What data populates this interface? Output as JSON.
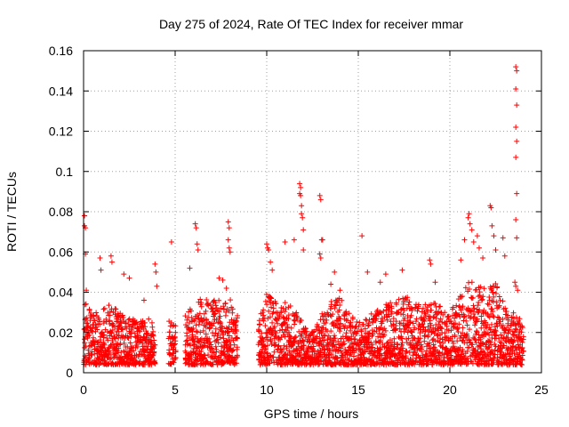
{
  "chart_data": {
    "type": "scatter",
    "title": "Day 275 of 2024, Rate Of TEC Index for receiver mmar",
    "xlabel": "GPS time / hours",
    "ylabel": "ROTI / TECUs",
    "xlim": [
      0,
      25
    ],
    "ylim": [
      0,
      0.16
    ],
    "xticks": [
      0,
      5,
      10,
      15,
      20,
      25
    ],
    "yticks": [
      0,
      0.02,
      0.04,
      0.06,
      0.08,
      0.1,
      0.12,
      0.14,
      0.16
    ],
    "xtick_labels": [
      "0",
      "5",
      "10",
      "15",
      "20",
      "25"
    ],
    "ytick_labels": [
      "0",
      "0.02",
      "0.04",
      "0.06",
      "0.08",
      "0.1",
      "0.12",
      "0.14",
      "0.16"
    ],
    "grid": true,
    "marker": "+",
    "color": "#ff0000",
    "data_gaps_hours": [
      [
        3.9,
        4.6
      ],
      [
        5.0,
        5.5
      ],
      [
        8.4,
        9.5
      ]
    ],
    "series": [
      {
        "name": "ROTI",
        "points": [
          [
            0.05,
            0.078
          ],
          [
            0.05,
            0.073
          ],
          [
            0.1,
            0.072
          ],
          [
            0.1,
            0.059
          ],
          [
            0.15,
            0.041
          ],
          [
            0.9,
            0.057
          ],
          [
            0.95,
            0.051
          ],
          [
            1.5,
            0.058
          ],
          [
            1.55,
            0.055
          ],
          [
            2.2,
            0.049
          ],
          [
            2.5,
            0.047
          ],
          [
            3.3,
            0.036
          ],
          [
            3.9,
            0.054
          ],
          [
            3.95,
            0.05
          ],
          [
            4.0,
            0.043
          ],
          [
            4.8,
            0.065
          ],
          [
            5.8,
            0.052
          ],
          [
            6.1,
            0.074
          ],
          [
            6.15,
            0.072
          ],
          [
            6.2,
            0.064
          ],
          [
            6.25,
            0.061
          ],
          [
            7.4,
            0.047
          ],
          [
            7.6,
            0.046
          ],
          [
            7.8,
            0.042
          ],
          [
            7.9,
            0.075
          ],
          [
            7.95,
            0.072
          ],
          [
            7.9,
            0.066
          ],
          [
            7.95,
            0.062
          ],
          [
            8.0,
            0.06
          ],
          [
            10.0,
            0.064
          ],
          [
            10.05,
            0.062
          ],
          [
            10.1,
            0.061
          ],
          [
            10.2,
            0.055
          ],
          [
            10.3,
            0.051
          ],
          [
            11.0,
            0.065
          ],
          [
            11.5,
            0.066
          ],
          [
            11.8,
            0.094
          ],
          [
            11.85,
            0.092
          ],
          [
            11.8,
            0.089
          ],
          [
            11.85,
            0.088
          ],
          [
            11.9,
            0.083
          ],
          [
            11.9,
            0.079
          ],
          [
            11.95,
            0.077
          ],
          [
            12.0,
            0.071
          ],
          [
            12.0,
            0.061
          ],
          [
            12.9,
            0.088
          ],
          [
            12.95,
            0.086
          ],
          [
            13.0,
            0.066
          ],
          [
            13.05,
            0.066
          ],
          [
            12.9,
            0.059
          ],
          [
            12.95,
            0.057
          ],
          [
            13.5,
            0.044
          ],
          [
            13.7,
            0.05
          ],
          [
            14.0,
            0.041
          ],
          [
            15.2,
            0.068
          ],
          [
            15.5,
            0.05
          ],
          [
            16.2,
            0.045
          ],
          [
            16.5,
            0.049
          ],
          [
            17.4,
            0.051
          ],
          [
            18.9,
            0.056
          ],
          [
            18.95,
            0.054
          ],
          [
            19.2,
            0.045
          ],
          [
            20.6,
            0.056
          ],
          [
            20.8,
            0.066
          ],
          [
            21.0,
            0.077
          ],
          [
            21.05,
            0.079
          ],
          [
            21.1,
            0.074
          ],
          [
            21.2,
            0.071
          ],
          [
            21.3,
            0.065
          ],
          [
            21.5,
            0.068
          ],
          [
            21.6,
            0.062
          ],
          [
            21.8,
            0.057
          ],
          [
            22.2,
            0.083
          ],
          [
            22.25,
            0.082
          ],
          [
            22.3,
            0.073
          ],
          [
            22.4,
            0.068
          ],
          [
            22.5,
            0.061
          ],
          [
            22.9,
            0.067
          ],
          [
            23.0,
            0.058
          ],
          [
            23.6,
            0.152
          ],
          [
            23.65,
            0.15
          ],
          [
            23.6,
            0.141
          ],
          [
            23.65,
            0.133
          ],
          [
            23.6,
            0.122
          ],
          [
            23.65,
            0.115
          ],
          [
            23.6,
            0.107
          ],
          [
            23.65,
            0.089
          ],
          [
            23.6,
            0.076
          ],
          [
            23.65,
            0.067
          ],
          [
            23.55,
            0.045
          ],
          [
            23.6,
            0.043
          ],
          [
            23.7,
            0.041
          ]
        ]
      }
    ],
    "dense_background": {
      "description": "thousands of low-level samples between ROTI 0.004 and ~0.03 across the observed hours",
      "baseline_min": 0.004,
      "hourly_envelope": [
        [
          0.0,
          0.036
        ],
        [
          0.5,
          0.03
        ],
        [
          1.0,
          0.033
        ],
        [
          1.5,
          0.034
        ],
        [
          2.0,
          0.03
        ],
        [
          2.5,
          0.028
        ],
        [
          3.0,
          0.026
        ],
        [
          3.5,
          0.027
        ],
        [
          3.9,
          0.026
        ],
        [
          4.6,
          0.026
        ],
        [
          5.0,
          0.025
        ],
        [
          5.5,
          0.028
        ],
        [
          6.0,
          0.034
        ],
        [
          6.5,
          0.038
        ],
        [
          7.0,
          0.036
        ],
        [
          7.5,
          0.036
        ],
        [
          8.0,
          0.037
        ],
        [
          8.4,
          0.03
        ],
        [
          9.5,
          0.024
        ],
        [
          10.0,
          0.04
        ],
        [
          10.5,
          0.036
        ],
        [
          11.0,
          0.035
        ],
        [
          11.5,
          0.033
        ],
        [
          12.0,
          0.028
        ],
        [
          12.5,
          0.02
        ],
        [
          13.0,
          0.03
        ],
        [
          13.5,
          0.036
        ],
        [
          14.0,
          0.038
        ],
        [
          14.5,
          0.03
        ],
        [
          15.0,
          0.025
        ],
        [
          15.5,
          0.028
        ],
        [
          16.0,
          0.032
        ],
        [
          16.5,
          0.034
        ],
        [
          17.0,
          0.036
        ],
        [
          17.5,
          0.038
        ],
        [
          18.0,
          0.037
        ],
        [
          18.5,
          0.035
        ],
        [
          19.0,
          0.036
        ],
        [
          19.5,
          0.033
        ],
        [
          20.0,
          0.03
        ],
        [
          20.5,
          0.038
        ],
        [
          21.0,
          0.046
        ],
        [
          21.5,
          0.044
        ],
        [
          22.0,
          0.042
        ],
        [
          22.5,
          0.045
        ],
        [
          23.0,
          0.034
        ],
        [
          23.5,
          0.03
        ],
        [
          24.0,
          0.025
        ]
      ]
    }
  }
}
